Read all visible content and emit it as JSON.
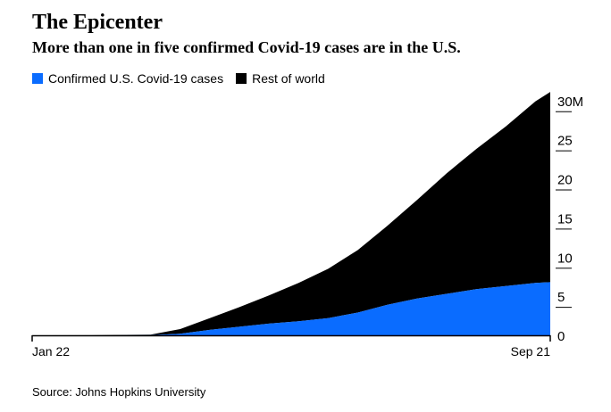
{
  "title": "The Epicenter",
  "subtitle": "More than one in five confirmed Covid-19 cases are in the U.S.",
  "source": "Source: Johns Hopkins University",
  "colors": {
    "us": "#0A6CFF",
    "world": "#000000",
    "axis": "#000000"
  },
  "chart_data": {
    "type": "area",
    "stacked": true,
    "title": "The Epicenter",
    "subtitle": "More than one in five confirmed Covid-19 cases are in the U.S.",
    "xlabel": "",
    "ylabel": "",
    "x_tick_labels": [
      "Jan 22",
      "Sep 21"
    ],
    "y_ticks": [
      0,
      5,
      10,
      15,
      20,
      25,
      30
    ],
    "y_tick_labels": [
      "0",
      "5",
      "10",
      "15",
      "20",
      "25",
      "30M"
    ],
    "ylim": [
      0,
      31
    ],
    "x_unit": "weeks since Jan 22",
    "x": [
      0,
      4,
      8,
      10,
      12,
      14,
      16,
      18,
      20,
      22,
      24,
      26,
      28,
      30,
      32,
      34,
      35
    ],
    "legend_position": "top-left",
    "series": [
      {
        "name": "Confirmed U.S. Covid-19 cases",
        "color": "#0A6CFF",
        "values": [
          0,
          0,
          0.01,
          0.2,
          0.7,
          1.1,
          1.5,
          1.8,
          2.2,
          2.9,
          3.9,
          4.7,
          5.3,
          5.9,
          6.3,
          6.7,
          6.8
        ]
      },
      {
        "name": "Rest of world",
        "color": "#000000",
        "values": [
          0,
          0.01,
          0.08,
          0.6,
          1.5,
          2.5,
          3.6,
          4.9,
          6.3,
          8.0,
          10.1,
          12.6,
          15.4,
          17.9,
          20.4,
          23.2,
          24.3
        ]
      }
    ]
  }
}
